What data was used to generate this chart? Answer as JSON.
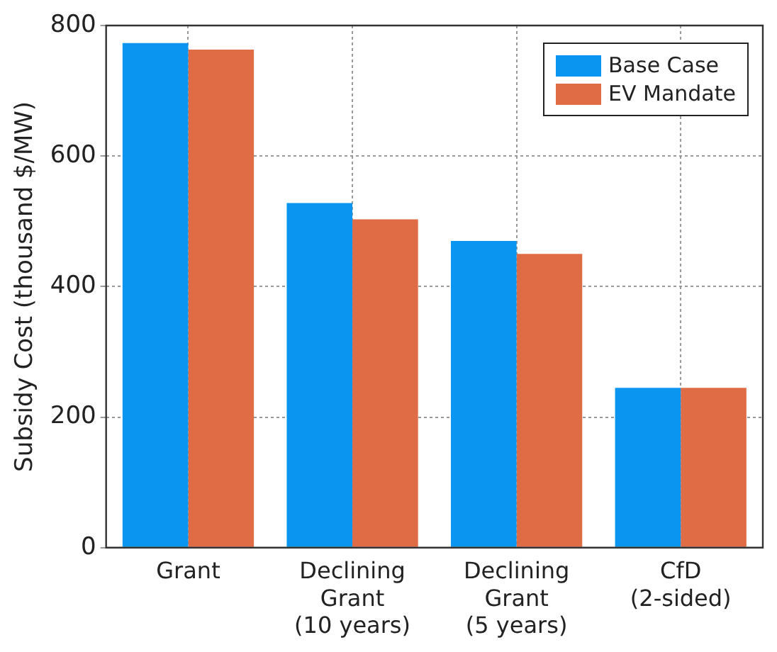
{
  "chart_data": {
    "type": "bar",
    "ylabel": "Subsidy Cost (thousand $/MW)",
    "categories": [
      "Grant",
      "Declining\nGrant\n(10 years)",
      "Declining\nGrant\n(5 years)",
      "CfD\n(2-sided)"
    ],
    "series": [
      {
        "name": "Base Case",
        "color": "#0a96f0",
        "values": [
          773,
          528,
          470,
          245
        ]
      },
      {
        "name": "EV Mandate",
        "color": "#e06c46",
        "values": [
          763,
          503,
          450,
          245
        ]
      }
    ],
    "ylim": [
      0,
      800
    ],
    "yticks": [
      0,
      200,
      400,
      600,
      800
    ],
    "grid": true,
    "legend": "top right"
  }
}
